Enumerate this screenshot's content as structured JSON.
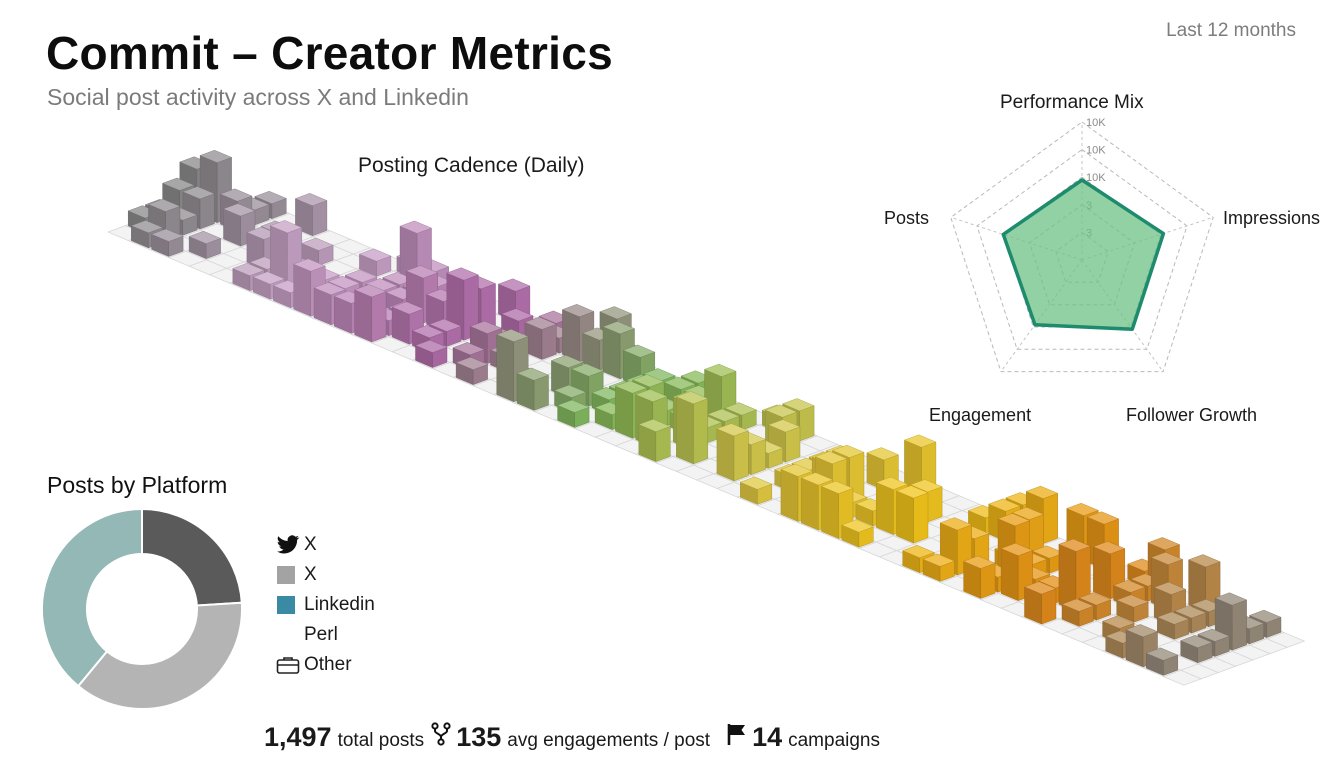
{
  "header": {
    "title": "Commit – Creator Metrics",
    "subtitle": "Social post activity across X and Linkedin",
    "period": "Last 12 months"
  },
  "cadence": {
    "title": "Posting Cadence (Daily)"
  },
  "radar": {
    "title": "Performance Mix",
    "axes": [
      "Posts",
      "Impressions",
      "Follower Growth",
      "Engagement",
      "Posts"
    ],
    "ring_labels": [
      "10K",
      "10K",
      "10K",
      "3",
      "3"
    ],
    "color": "#1e8a6e",
    "fill": "#6cc184"
  },
  "donut": {
    "title": "Posts by Platform",
    "legend": [
      {
        "label": "X",
        "icon": "twitter-bird-icon",
        "color": "#555555"
      },
      {
        "label": "X",
        "icon": "square-swatch",
        "color": "#a3a3a3"
      },
      {
        "label": "Linkedin",
        "icon": "square-swatch",
        "color": "#3b8aa4"
      },
      {
        "label": "Perl",
        "icon": "none",
        "color": "#ffffff"
      },
      {
        "label": "Other",
        "icon": "briefcase-icon",
        "color": "#222222"
      }
    ]
  },
  "stats": {
    "total_posts_value": "1,497",
    "total_posts_label": "total posts",
    "avg_engagement_value": "135",
    "avg_engagement_label": "avg engagements / post",
    "campaigns_value": "14",
    "campaigns_label": "campaigns"
  },
  "chart_data": [
    {
      "type": "heatmap",
      "title": "Posting Cadence (Daily)",
      "rows": 7,
      "columns": 53,
      "unit": "posts per day",
      "color_by_season": [
        "#8a8a8a",
        "#c9a2c8",
        "#b06aa8",
        "#7fba5c",
        "#dcc94a",
        "#f2c418",
        "#e48a14",
        "#8a8a8a"
      ],
      "grid": true
    },
    {
      "type": "radar",
      "title": "Performance Mix",
      "axes": [
        "Impressions",
        "Follower Growth",
        "Engagement",
        "Posts",
        "Posts"
      ],
      "ring_labels": [
        "10K",
        "10K",
        "10K",
        "3",
        "3"
      ],
      "values": [
        0.58,
        0.62,
        0.62,
        0.58,
        0.6
      ],
      "rings": 5
    },
    {
      "type": "pie",
      "title": "Posts by Platform",
      "donut": true,
      "categories": [
        "X",
        "X",
        "Linkedin"
      ],
      "values": [
        24,
        37,
        39
      ],
      "colors": [
        "#5a5a5a",
        "#b4b4b4",
        "#93b8b6"
      ]
    }
  ]
}
